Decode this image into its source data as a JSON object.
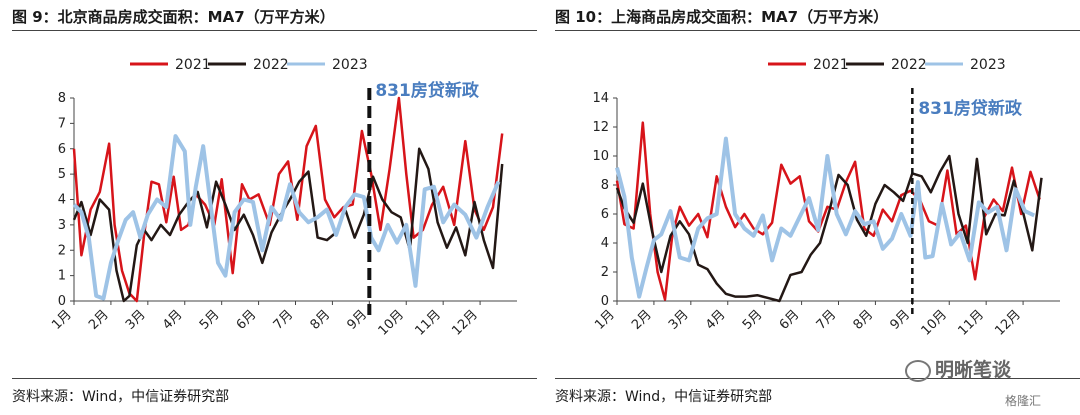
{
  "chart_data": [
    {
      "type": "line",
      "title": "图 9：北京商品房成交面积：MA7（万平方米）",
      "source": "资料来源：Wind，中信证券研究部",
      "ylim": [
        0,
        8
      ],
      "yticks": [
        "0",
        "1",
        "2",
        "3",
        "4",
        "5",
        "6",
        "7",
        "8"
      ],
      "xtick_labels": [
        "1月",
        "2月",
        "3月",
        "4月",
        "5月",
        "6月",
        "7月",
        "8月",
        "9月",
        "10月",
        "11月",
        "12月"
      ],
      "x_axis": "month",
      "annotation": {
        "text": "831房贷新政",
        "x": 8.0
      },
      "legend": [
        "2021",
        "2022",
        "2023"
      ],
      "series": [
        {
          "name": "2021",
          "color": "#d7141a",
          "x": [
            0.0,
            0.2,
            0.45,
            0.7,
            0.95,
            1.1,
            1.3,
            1.5,
            1.7,
            1.9,
            2.1,
            2.3,
            2.5,
            2.7,
            2.9,
            3.1,
            3.3,
            3.55,
            3.8,
            4.0,
            4.3,
            4.55,
            4.75,
            5.0,
            5.3,
            5.55,
            5.8,
            6.05,
            6.3,
            6.55,
            6.8,
            7.05,
            7.3,
            7.55,
            7.8,
            8.05,
            8.3,
            8.55,
            8.8,
            9.0,
            9.2,
            9.45,
            9.7,
            10.0,
            10.3,
            10.6,
            10.85,
            11.1,
            11.35,
            11.6
          ],
          "values": [
            6.0,
            1.8,
            3.6,
            4.3,
            6.2,
            3.0,
            1.2,
            0.3,
            0.0,
            2.6,
            4.7,
            4.6,
            3.1,
            4.9,
            2.8,
            3.0,
            4.2,
            3.8,
            3.0,
            4.8,
            1.1,
            4.6,
            4.0,
            4.2,
            3.0,
            5.0,
            5.5,
            3.2,
            6.1,
            6.9,
            4.0,
            3.3,
            3.7,
            3.8,
            6.7,
            5.0,
            2.8,
            5.2,
            8.0,
            5.0,
            2.5,
            2.8,
            3.8,
            4.5,
            3.0,
            6.3,
            3.6,
            2.8,
            3.7,
            6.6
          ]
        },
        {
          "name": "2022",
          "color": "#231815",
          "x": [
            0.0,
            0.2,
            0.45,
            0.7,
            0.95,
            1.15,
            1.35,
            1.5,
            1.7,
            1.9,
            2.1,
            2.35,
            2.6,
            2.85,
            3.1,
            3.35,
            3.6,
            3.85,
            4.1,
            4.35,
            4.6,
            4.85,
            5.1,
            5.35,
            5.6,
            5.85,
            6.1,
            6.35,
            6.6,
            6.85,
            7.1,
            7.35,
            7.6,
            7.85,
            8.1,
            8.35,
            8.6,
            8.85,
            9.1,
            9.35,
            9.6,
            9.85,
            10.1,
            10.35,
            10.6,
            10.85,
            11.1,
            11.35,
            11.6
          ],
          "values": [
            3.2,
            3.9,
            2.6,
            4.0,
            3.6,
            1.2,
            0.0,
            0.2,
            2.2,
            2.8,
            2.4,
            3.0,
            2.6,
            3.4,
            3.9,
            4.3,
            2.9,
            4.7,
            3.8,
            2.8,
            3.4,
            2.6,
            1.5,
            2.7,
            3.4,
            4.0,
            4.7,
            5.1,
            2.5,
            2.4,
            2.7,
            3.6,
            2.5,
            3.4,
            4.9,
            4.0,
            3.5,
            3.3,
            2.0,
            6.0,
            5.2,
            3.1,
            2.1,
            2.9,
            1.8,
            3.9,
            2.4,
            1.3,
            5.4
          ]
        },
        {
          "name": "2023",
          "color": "#9ec3e6",
          "x": [
            0.0,
            0.2,
            0.4,
            0.6,
            0.8,
            1.0,
            1.2,
            1.4,
            1.6,
            1.8,
            2.0,
            2.25,
            2.5,
            2.75,
            3.0,
            3.15,
            3.3,
            3.5,
            3.7,
            3.9,
            4.1,
            4.35,
            4.6,
            4.85,
            5.1,
            5.35,
            5.6,
            5.85,
            6.1,
            6.35,
            6.6,
            6.85,
            7.1,
            7.35,
            7.6,
            7.85,
            8.05,
            8.25,
            8.5,
            8.75,
            9.0,
            9.25,
            9.5,
            9.75,
            10.0,
            10.3,
            10.6,
            10.9,
            11.2,
            11.5
          ],
          "values": [
            3.8,
            3.5,
            2.5,
            0.2,
            0.1,
            1.5,
            2.4,
            3.2,
            3.5,
            2.5,
            3.4,
            4.0,
            3.7,
            6.5,
            5.9,
            3.0,
            4.5,
            6.1,
            3.8,
            1.5,
            1.0,
            3.5,
            4.0,
            3.9,
            2.0,
            3.7,
            3.2,
            4.6,
            3.5,
            3.1,
            3.3,
            3.6,
            2.6,
            3.7,
            4.2,
            4.1,
            2.5,
            2.0,
            3.0,
            2.3,
            3.0,
            0.6,
            4.4,
            4.5,
            3.1,
            3.8,
            3.4,
            2.5,
            3.7,
            4.7
          ]
        }
      ]
    },
    {
      "type": "line",
      "title": "图 10：上海商品房成交面积：MA7（万平方米）",
      "source": "资料来源：Wind，中信证券研究部",
      "ylim": [
        0,
        14
      ],
      "yticks": [
        "0",
        "2",
        "4",
        "6",
        "8",
        "10",
        "12",
        "14"
      ],
      "xtick_labels": [
        "1月",
        "2月",
        "3月",
        "4月",
        "5月",
        "6月",
        "7月",
        "8月",
        "9月",
        "10月",
        "11月",
        "12月"
      ],
      "x_axis": "month",
      "annotation": {
        "text": "831房贷新政",
        "x": 8.0
      },
      "legend": [
        "2021",
        "2022",
        "2023"
      ],
      "series": [
        {
          "name": "2021",
          "color": "#d7141a",
          "x": [
            0.0,
            0.2,
            0.45,
            0.7,
            0.9,
            1.1,
            1.3,
            1.5,
            1.7,
            1.95,
            2.2,
            2.45,
            2.7,
            2.95,
            3.2,
            3.45,
            3.7,
            3.95,
            4.2,
            4.45,
            4.7,
            4.95,
            5.2,
            5.45,
            5.7,
            5.95,
            6.2,
            6.45,
            6.7,
            6.95,
            7.2,
            7.45,
            7.7,
            7.95,
            8.2,
            8.45,
            8.7,
            8.95,
            9.2,
            9.45,
            9.7,
            9.95,
            10.2,
            10.45,
            10.7,
            10.95,
            11.2,
            11.45
          ],
          "values": [
            8.3,
            5.3,
            5.0,
            12.3,
            6.0,
            2.0,
            0.1,
            4.6,
            6.5,
            5.2,
            6.0,
            4.4,
            8.6,
            6.5,
            5.1,
            6.0,
            5.0,
            4.6,
            5.4,
            9.4,
            8.1,
            8.6,
            5.5,
            4.8,
            6.5,
            6.3,
            8.2,
            9.6,
            5.0,
            4.5,
            6.3,
            5.5,
            7.3,
            7.6,
            7.0,
            5.5,
            5.2,
            9.0,
            4.6,
            5.2,
            1.5,
            5.8,
            7.0,
            6.2,
            9.2,
            6.0,
            8.9,
            7.0
          ]
        },
        {
          "name": "2022",
          "color": "#231815",
          "x": [
            0.0,
            0.2,
            0.45,
            0.7,
            0.95,
            1.2,
            1.45,
            1.7,
            1.95,
            2.2,
            2.45,
            2.7,
            2.95,
            3.2,
            3.5,
            3.8,
            4.1,
            4.4,
            4.7,
            5.0,
            5.25,
            5.5,
            5.75,
            6.0,
            6.25,
            6.5,
            6.75,
            7.0,
            7.25,
            7.5,
            7.75,
            8.0,
            8.25,
            8.5,
            8.75,
            9.0,
            9.25,
            9.5,
            9.75,
            10.0,
            10.25,
            10.5,
            10.75,
            11.0,
            11.25,
            11.5
          ],
          "values": [
            7.8,
            6.4,
            5.4,
            8.1,
            4.8,
            2.0,
            4.5,
            5.5,
            4.6,
            2.5,
            2.2,
            1.2,
            0.5,
            0.3,
            0.3,
            0.4,
            0.2,
            0.0,
            1.8,
            2.0,
            3.2,
            4.0,
            6.2,
            8.7,
            8.0,
            5.6,
            4.5,
            6.7,
            8.0,
            7.5,
            6.9,
            8.8,
            8.6,
            7.5,
            8.9,
            10.0,
            6.0,
            4.0,
            9.8,
            4.6,
            6.0,
            5.9,
            8.3,
            6.1,
            3.5,
            8.5
          ]
        },
        {
          "name": "2023",
          "color": "#9ec3e6",
          "x": [
            0.0,
            0.2,
            0.4,
            0.6,
            0.8,
            1.0,
            1.2,
            1.45,
            1.7,
            1.95,
            2.2,
            2.45,
            2.7,
            2.95,
            3.2,
            3.45,
            3.7,
            3.95,
            4.2,
            4.45,
            4.7,
            4.95,
            5.2,
            5.45,
            5.7,
            5.95,
            6.2,
            6.45,
            6.7,
            6.95,
            7.2,
            7.45,
            7.7,
            7.95,
            8.15,
            8.35,
            8.55,
            8.8,
            9.05,
            9.3,
            9.55,
            9.8,
            10.05,
            10.3,
            10.55,
            10.8,
            11.05,
            11.3
          ],
          "values": [
            9.2,
            7.2,
            3.0,
            0.3,
            2.3,
            4.2,
            4.6,
            6.2,
            3.0,
            2.8,
            5.0,
            5.7,
            6.0,
            11.2,
            6.0,
            5.0,
            4.5,
            5.9,
            2.8,
            5.0,
            4.5,
            5.8,
            7.1,
            4.9,
            10.0,
            6.0,
            4.6,
            6.2,
            5.3,
            5.5,
            3.6,
            4.3,
            6.0,
            4.5,
            8.2,
            3.0,
            3.1,
            6.7,
            3.9,
            4.7,
            2.8,
            6.8,
            6.1,
            6.5,
            3.5,
            7.7,
            6.2,
            5.9
          ]
        }
      ]
    }
  ],
  "watermark": "明晰笔谈",
  "brand": "格隆汇"
}
